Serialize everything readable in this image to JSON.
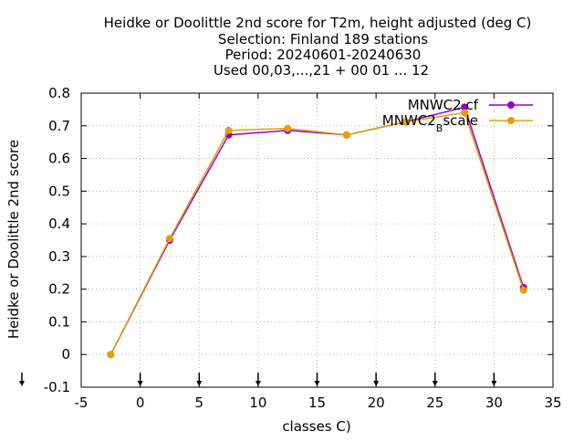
{
  "chart_data": {
    "type": "line",
    "title_lines": [
      "Heidke or Doolittle 2nd score  for T2m, height adjusted (deg C)",
      "Selection: Finland    189 stations",
      "Period: 20240601-20240630",
      "Used 00,03,...,21 + 00 01 ... 12"
    ],
    "xlabel": "classes C)",
    "ylabel": "Heidke or Doolittle 2nd score",
    "xlim": [
      -5,
      35
    ],
    "ylim": [
      -0.1,
      0.8
    ],
    "x_ticks": [
      -5,
      0,
      5,
      10,
      15,
      20,
      25,
      30,
      35
    ],
    "y_ticks": [
      -0.1,
      0,
      0.1,
      0.2,
      0.3,
      0.4,
      0.5,
      0.6,
      0.7,
      0.8
    ],
    "grid": true,
    "legend_position": "top-right",
    "x": [
      -2.5,
      2.5,
      7.5,
      12.5,
      17.5,
      22.5,
      27.5,
      32.5
    ],
    "series": [
      {
        "name": "MNWC2 cf",
        "color": "#9400d3",
        "marker": "circle",
        "values": [
          0.0,
          0.35,
          0.672,
          0.686,
          0.672,
          0.712,
          0.757,
          0.205
        ]
      },
      {
        "name": "MNWC2_B scale",
        "name_main": "MNWC2",
        "name_sub": "B",
        "name_rest": "scale",
        "color": "#e69f00",
        "marker": "circle",
        "values": [
          0.0,
          0.355,
          0.686,
          0.692,
          0.672,
          0.712,
          0.74,
          0.197
        ]
      }
    ],
    "bottom_arrow_x": [
      -5,
      0,
      5,
      10,
      15,
      20,
      25,
      30
    ]
  }
}
